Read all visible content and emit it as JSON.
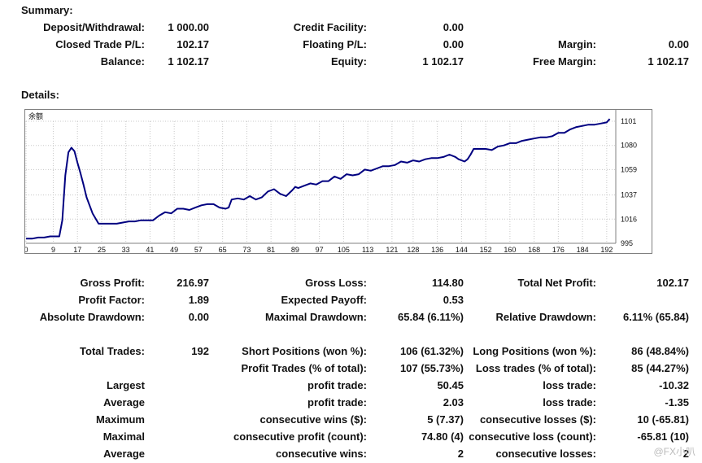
{
  "summary": {
    "title": "Summary:",
    "deposit_label": "Deposit/Withdrawal:",
    "deposit": "1 000.00",
    "credit_label": "Credit Facility:",
    "credit": "0.00",
    "closed_label": "Closed Trade P/L:",
    "closed": "102.17",
    "floating_label": "Floating P/L:",
    "floating": "0.00",
    "margin_label": "Margin:",
    "margin": "0.00",
    "balance_label": "Balance:",
    "balance": "1 102.17",
    "equity_label": "Equity:",
    "equity": "1 102.17",
    "free_margin_label": "Free Margin:",
    "free_margin": "1 102.17"
  },
  "details": {
    "title": "Details:",
    "gross_profit_label": "Gross Profit:",
    "gross_profit": "216.97",
    "gross_loss_label": "Gross Loss:",
    "gross_loss": "114.80",
    "total_net_profit_label": "Total Net Profit:",
    "total_net_profit": "102.17",
    "profit_factor_label": "Profit Factor:",
    "profit_factor": "1.89",
    "expected_payoff_label": "Expected Payoff:",
    "expected_payoff": "0.53",
    "absolute_drawdown_label": "Absolute Drawdown:",
    "absolute_drawdown": "0.00",
    "maximal_drawdown_label": "Maximal Drawdown:",
    "maximal_drawdown": "65.84 (6.11%)",
    "relative_drawdown_label": "Relative Drawdown:",
    "relative_drawdown": "6.11% (65.84)",
    "total_trades_label": "Total Trades:",
    "total_trades": "192",
    "short_positions_label": "Short Positions (won %):",
    "short_positions": "106 (61.32%)",
    "long_positions_label": "Long Positions (won %):",
    "long_positions": "86 (48.84%)",
    "profit_trades_label": "Profit Trades (% of total):",
    "profit_trades": "107 (55.73%)",
    "loss_trades_label": "Loss trades (% of total):",
    "loss_trades": "85 (44.27%)",
    "largest_label": "Largest",
    "largest_profit_label": "profit trade:",
    "largest_profit": "50.45",
    "largest_loss_label": "loss trade:",
    "largest_loss": "-10.32",
    "average_label": "Average",
    "average_profit_label": "profit trade:",
    "average_profit": "2.03",
    "average_loss_label": "loss trade:",
    "average_loss": "-1.35",
    "maximum_label": "Maximum",
    "max_cons_wins_label": "consecutive wins ($):",
    "max_cons_wins": "5 (7.37)",
    "max_cons_losses_label": "consecutive losses ($):",
    "max_cons_losses": "10 (-65.81)",
    "maximal_label": "Maximal",
    "maximal_cons_profit_label": "consecutive profit (count):",
    "maximal_cons_profit": "74.80 (4)",
    "maximal_cons_loss_label": "consecutive loss (count):",
    "maximal_cons_loss": "-65.81 (10)",
    "average2_label": "Average",
    "avg_cons_wins_label": "consecutive wins:",
    "avg_cons_wins": "2",
    "avg_cons_losses_label": "consecutive losses:",
    "avg_cons_losses": "2"
  },
  "watermark": "@FX小叭",
  "chart_data": {
    "type": "line",
    "title": "余额",
    "xlabel": "",
    "ylabel": "",
    "x_ticks": [
      "0",
      "9",
      "17",
      "25",
      "33",
      "41",
      "49",
      "57",
      "65",
      "73",
      "81",
      "89",
      "97",
      "105",
      "113",
      "121",
      "128",
      "136",
      "144",
      "152",
      "160",
      "168",
      "176",
      "184",
      "192"
    ],
    "y_ticks": [
      "1101",
      "1080",
      "1059",
      "1037",
      "1016",
      "995"
    ],
    "xlim": [
      0,
      195
    ],
    "ylim": [
      995,
      1101
    ],
    "line_color": "#000080",
    "grid": true,
    "series": [
      {
        "x": [
          0,
          2,
          4,
          6,
          8,
          10,
          11,
          12,
          13,
          14,
          15,
          16,
          17,
          18,
          19,
          20,
          21,
          22,
          24,
          26,
          28,
          30,
          32,
          34,
          36,
          38,
          40,
          42,
          44,
          46,
          48,
          50,
          52,
          54,
          56,
          58,
          60,
          62,
          64,
          66,
          67,
          68,
          70,
          72,
          74,
          76,
          78,
          80,
          82,
          84,
          86,
          88,
          89,
          90,
          92,
          94,
          96,
          98,
          100,
          102,
          104,
          106,
          108,
          110,
          112,
          114,
          116,
          118,
          120,
          122,
          124,
          126,
          128,
          130,
          132,
          134,
          136,
          138,
          140,
          142,
          143,
          144,
          145,
          146,
          147,
          148,
          150,
          152,
          154,
          156,
          158,
          160,
          162,
          164,
          166,
          168,
          170,
          172,
          174,
          176,
          178,
          180,
          182,
          184,
          186,
          188,
          190,
          192,
          193
        ],
        "y": [
          999,
          999,
          1000,
          1000,
          1001,
          1001,
          1001,
          1015,
          1054,
          1074,
          1078,
          1075,
          1065,
          1056,
          1046,
          1035,
          1028,
          1021,
          1012,
          1012,
          1012,
          1012,
          1013,
          1014,
          1014,
          1015,
          1015,
          1015,
          1019,
          1022,
          1021,
          1025,
          1025,
          1024,
          1026,
          1028,
          1029,
          1029,
          1026,
          1025,
          1026,
          1033,
          1034,
          1033,
          1036,
          1033,
          1035,
          1040,
          1042,
          1038,
          1036,
          1041,
          1044,
          1043,
          1045,
          1047,
          1046,
          1049,
          1049,
          1053,
          1051,
          1055,
          1054,
          1055,
          1059,
          1058,
          1060,
          1062,
          1062,
          1063,
          1066,
          1065,
          1067,
          1066,
          1068,
          1069,
          1069,
          1070,
          1072,
          1070,
          1068,
          1067,
          1066,
          1068,
          1072,
          1077,
          1077,
          1077,
          1076,
          1079,
          1080,
          1082,
          1082,
          1084,
          1085,
          1086,
          1087,
          1087,
          1088,
          1091,
          1091,
          1094,
          1096,
          1097,
          1098,
          1098,
          1099,
          1100,
          1103
        ]
      }
    ]
  }
}
